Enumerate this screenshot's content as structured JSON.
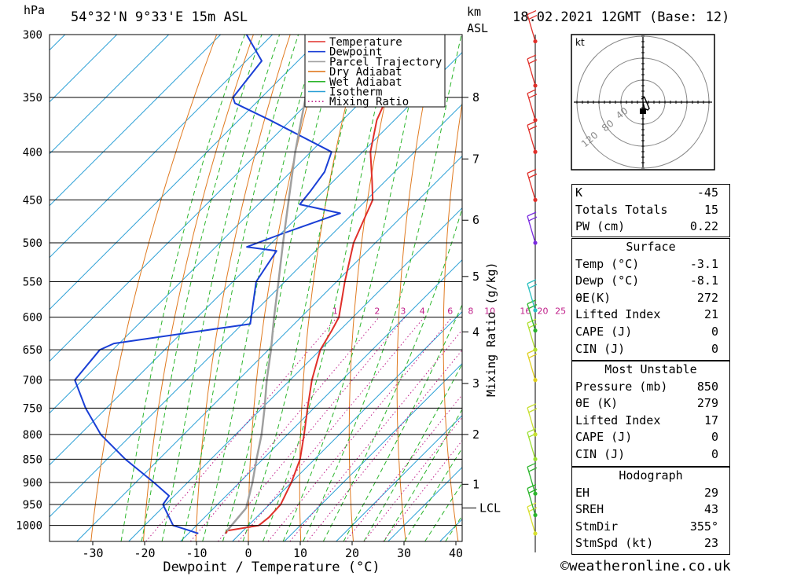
{
  "header": {
    "location": "54°32'N  9°33'E  15m  ASL",
    "datetime": "18.02.2021  12GMT  (Base: 12)",
    "pressure_unit": "hPa",
    "height_unit": "km",
    "height_unit2": "ASL"
  },
  "chart_data": {
    "type": "line",
    "xlabel": "Dewpoint / Temperature (°C)",
    "ylabel": "",
    "right_axis_label": "Mixing Ratio (g/kg)",
    "x_ticks": [
      -30,
      -20,
      -10,
      0,
      10,
      20,
      30,
      40
    ],
    "xlim": [
      -40,
      40
    ],
    "pressure_ticks": [
      300,
      350,
      400,
      450,
      500,
      550,
      600,
      650,
      700,
      750,
      800,
      850,
      900,
      950,
      1000
    ],
    "ylim": [
      300,
      1040
    ],
    "skew_deg_per_hpa_log": 45,
    "km_ticks": [
      {
        "km": 8,
        "p": 350
      },
      {
        "km": 7,
        "p": 407
      },
      {
        "km": 6,
        "p": 473
      },
      {
        "km": 5,
        "p": 543
      },
      {
        "km": 4,
        "p": 622
      },
      {
        "km": 3,
        "p": 706
      },
      {
        "km": 2,
        "p": 800
      },
      {
        "km": 1,
        "p": 904
      }
    ],
    "lcl_label": "LCL",
    "lcl_p": 958,
    "mixing_ratio_labels": [
      "1",
      "2",
      "3",
      "4",
      "6",
      "8",
      "10",
      "16",
      "20",
      "25"
    ],
    "mixing_ratio_values": [
      1,
      2,
      3,
      4,
      6,
      8,
      10,
      16,
      20,
      25
    ],
    "legend": [
      {
        "name": "Temperature",
        "color": "#e0302a",
        "style": "solid"
      },
      {
        "name": "Dewpoint",
        "color": "#1a3fd6",
        "style": "solid"
      },
      {
        "name": "Parcel Trajectory",
        "color": "#a0a0a0",
        "style": "solid"
      },
      {
        "name": "Dry Adiabat",
        "color": "#e07a20",
        "style": "solid"
      },
      {
        "name": "Wet Adiabat",
        "color": "#2bb52b",
        "style": "solid"
      },
      {
        "name": "Isotherm",
        "color": "#2a9fd6",
        "style": "solid"
      },
      {
        "name": "Mixing Ratio",
        "color": "#c0208a",
        "style": "dotted"
      }
    ],
    "series": [
      {
        "name": "Temperature",
        "points": [
          [
            1020,
            -2.7
          ],
          [
            1013,
            -3.1
          ],
          [
            1000,
            2.0
          ],
          [
            980,
            2.4
          ],
          [
            950,
            2.2
          ],
          [
            900,
            0.0
          ],
          [
            850,
            -2.8
          ],
          [
            800,
            -6.8
          ],
          [
            750,
            -11.2
          ],
          [
            700,
            -15.8
          ],
          [
            650,
            -20.0
          ],
          [
            620,
            -21.5
          ],
          [
            600,
            -22.7
          ],
          [
            550,
            -28.4
          ],
          [
            500,
            -34.2
          ],
          [
            450,
            -38.8
          ],
          [
            430,
            -42.5
          ],
          [
            400,
            -48.5
          ],
          [
            370,
            -53.4
          ],
          [
            350,
            -55.8
          ],
          [
            320,
            -59.0
          ],
          [
            300,
            -61.4
          ]
        ]
      },
      {
        "name": "Dewpoint",
        "points": [
          [
            1020,
            -8.1
          ],
          [
            1010,
            -11.2
          ],
          [
            1000,
            -14.5
          ],
          [
            950,
            -20.5
          ],
          [
            930,
            -21.0
          ],
          [
            900,
            -26.5
          ],
          [
            850,
            -36.5
          ],
          [
            800,
            -46.0
          ],
          [
            750,
            -54.0
          ],
          [
            700,
            -61.5
          ],
          [
            650,
            -62.5
          ],
          [
            640,
            -61.0
          ],
          [
            610,
            -38.5
          ],
          [
            550,
            -45.5
          ],
          [
            510,
            -47.5
          ],
          [
            505,
            -54.0
          ],
          [
            490,
            -50.0
          ],
          [
            465,
            -42.5
          ],
          [
            455,
            -52.0
          ],
          [
            440,
            -52.5
          ],
          [
            420,
            -53.5
          ],
          [
            400,
            -56.0
          ],
          [
            370,
            -74.0
          ],
          [
            355,
            -84.0
          ],
          [
            350,
            -85.5
          ],
          [
            320,
            -87.0
          ],
          [
            300,
            -95.0
          ]
        ]
      },
      {
        "name": "Parcel Trajectory",
        "points": [
          [
            1013,
            -3.1
          ],
          [
            958,
            -3.8
          ],
          [
            900,
            -7.5
          ],
          [
            850,
            -11.2
          ],
          [
            800,
            -15.0
          ],
          [
            750,
            -19.5
          ],
          [
            700,
            -24.5
          ],
          [
            650,
            -29.5
          ],
          [
            600,
            -35.2
          ],
          [
            550,
            -41.2
          ],
          [
            500,
            -47.8
          ],
          [
            450,
            -55.0
          ],
          [
            400,
            -63.0
          ],
          [
            350,
            -71.5
          ],
          [
            300,
            -81.0
          ]
        ]
      }
    ]
  },
  "wind_profile": {
    "barbs": [
      {
        "p": 1020,
        "color": "#d8e030"
      },
      {
        "p": 975,
        "color": "#2bb52b"
      },
      {
        "p": 925,
        "color": "#2bb52b"
      },
      {
        "p": 850,
        "color": "#9adf30"
      },
      {
        "p": 800,
        "color": "#c8e030"
      },
      {
        "p": 700,
        "color": "#e0d020"
      },
      {
        "p": 650,
        "color": "#b0e030"
      },
      {
        "p": 620,
        "color": "#2bb52b"
      },
      {
        "p": 590,
        "color": "#2ac0c0"
      },
      {
        "p": 500,
        "color": "#7a2ae0"
      },
      {
        "p": 450,
        "color": "#e0302a"
      },
      {
        "p": 400,
        "color": "#e0302a"
      },
      {
        "p": 370,
        "color": "#e0302a"
      },
      {
        "p": 340,
        "color": "#e0302a"
      },
      {
        "p": 305,
        "color": "#e0302a"
      }
    ]
  },
  "hodograph": {
    "unit_label": "kt",
    "ring_labels": [
      "40",
      "80",
      "120"
    ]
  },
  "indices": {
    "basic": [
      {
        "label": "K",
        "value": "-45"
      },
      {
        "label": "Totals Totals",
        "value": "15"
      },
      {
        "label": "PW (cm)",
        "value": "0.22"
      }
    ],
    "surface_title": "Surface",
    "surface": [
      {
        "label": "Temp (°C)",
        "value": "-3.1"
      },
      {
        "label": "Dewp (°C)",
        "value": "-8.1"
      },
      {
        "label": "θE(K)",
        "value": "272"
      },
      {
        "label": "Lifted Index",
        "value": "21"
      },
      {
        "label": "CAPE (J)",
        "value": "0"
      },
      {
        "label": "CIN (J)",
        "value": "0"
      }
    ],
    "mu_title": "Most Unstable",
    "mu": [
      {
        "label": "Pressure (mb)",
        "value": "850"
      },
      {
        "label": "θE (K)",
        "value": "279"
      },
      {
        "label": "Lifted Index",
        "value": "17"
      },
      {
        "label": "CAPE (J)",
        "value": "0"
      },
      {
        "label": "CIN (J)",
        "value": "0"
      }
    ],
    "hodo_title": "Hodograph",
    "hodo": [
      {
        "label": "EH",
        "value": "29"
      },
      {
        "label": "SREH",
        "value": "43"
      },
      {
        "label": "StmDir",
        "value": "355°"
      },
      {
        "label": "StmSpd (kt)",
        "value": "23"
      }
    ]
  },
  "copyright": "©weatheronline.co.uk"
}
